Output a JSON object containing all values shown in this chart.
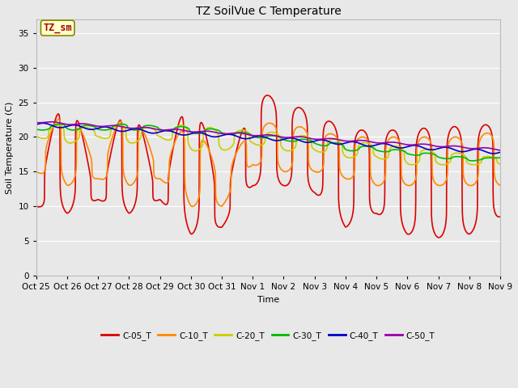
{
  "title": "TZ SoilVue C Temperature",
  "ylabel": "Soil Temperature (C)",
  "xlabel": "Time",
  "ylim": [
    0,
    37
  ],
  "yticks": [
    0,
    5,
    10,
    15,
    20,
    25,
    30,
    35
  ],
  "plot_bg_color": "#e8e8e8",
  "legend_label": "TZ_sm",
  "legend_text_color": "#aa0000",
  "legend_box_facecolor": "#ffffcc",
  "legend_box_edgecolor": "#888800",
  "series_colors": {
    "C-05_T": "#dd0000",
    "C-10_T": "#ff8800",
    "C-20_T": "#cccc00",
    "C-30_T": "#00bb00",
    "C-40_T": "#0000cc",
    "C-50_T": "#9900aa"
  },
  "linewidth": 1.2,
  "xtick_labels": [
    "Oct 25",
    "Oct 26",
    "Oct 27",
    "Oct 28",
    "Oct 29",
    "Oct 30",
    "Oct 31",
    "Nov 1",
    "Nov 2",
    "Nov 3",
    "Nov 4",
    "Nov 5",
    "Nov 6",
    "Nov 7",
    "Nov 8",
    "Nov 9"
  ],
  "grid_color": "#ffffff",
  "title_fontsize": 10,
  "label_fontsize": 8,
  "tick_fontsize": 7.5
}
